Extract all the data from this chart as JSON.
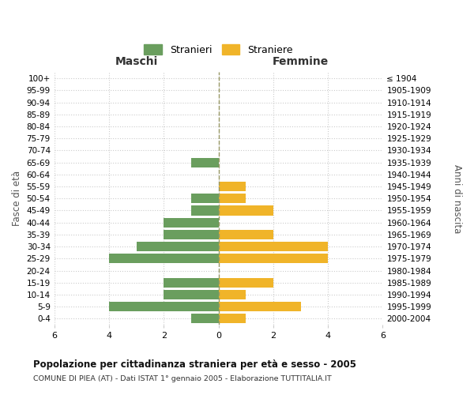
{
  "age_groups": [
    "100+",
    "95-99",
    "90-94",
    "85-89",
    "80-84",
    "75-79",
    "70-74",
    "65-69",
    "60-64",
    "55-59",
    "50-54",
    "45-49",
    "40-44",
    "35-39",
    "30-34",
    "25-29",
    "20-24",
    "15-19",
    "10-14",
    "5-9",
    "0-4"
  ],
  "birth_years": [
    "≤ 1904",
    "1905-1909",
    "1910-1914",
    "1915-1919",
    "1920-1924",
    "1925-1929",
    "1930-1934",
    "1935-1939",
    "1940-1944",
    "1945-1949",
    "1950-1954",
    "1955-1959",
    "1960-1964",
    "1965-1969",
    "1970-1974",
    "1975-1979",
    "1980-1984",
    "1985-1989",
    "1990-1994",
    "1995-1999",
    "2000-2004"
  ],
  "males": [
    0,
    0,
    0,
    0,
    0,
    0,
    0,
    1,
    0,
    0,
    1,
    1,
    2,
    2,
    3,
    4,
    0,
    2,
    2,
    4,
    1
  ],
  "females": [
    0,
    0,
    0,
    0,
    0,
    0,
    0,
    0,
    0,
    1,
    1,
    2,
    0,
    2,
    4,
    4,
    0,
    2,
    1,
    3,
    1
  ],
  "male_color": "#6a9e5e",
  "female_color": "#f0b429",
  "center_line_color": "#999966",
  "grid_color": "#cccccc",
  "background_color": "#ffffff",
  "bar_height": 0.8,
  "xlim": 6,
  "title": "Popolazione per cittadinanza straniera per età e sesso - 2005",
  "subtitle": "COMUNE DI PIEA (AT) - Dati ISTAT 1° gennaio 2005 - Elaborazione TUTTITALIA.IT",
  "xlabel_left": "Maschi",
  "xlabel_right": "Femmine",
  "ylabel_left": "Fasce di età",
  "ylabel_right": "Anni di nascita",
  "legend_male": "Stranieri",
  "legend_female": "Straniere"
}
